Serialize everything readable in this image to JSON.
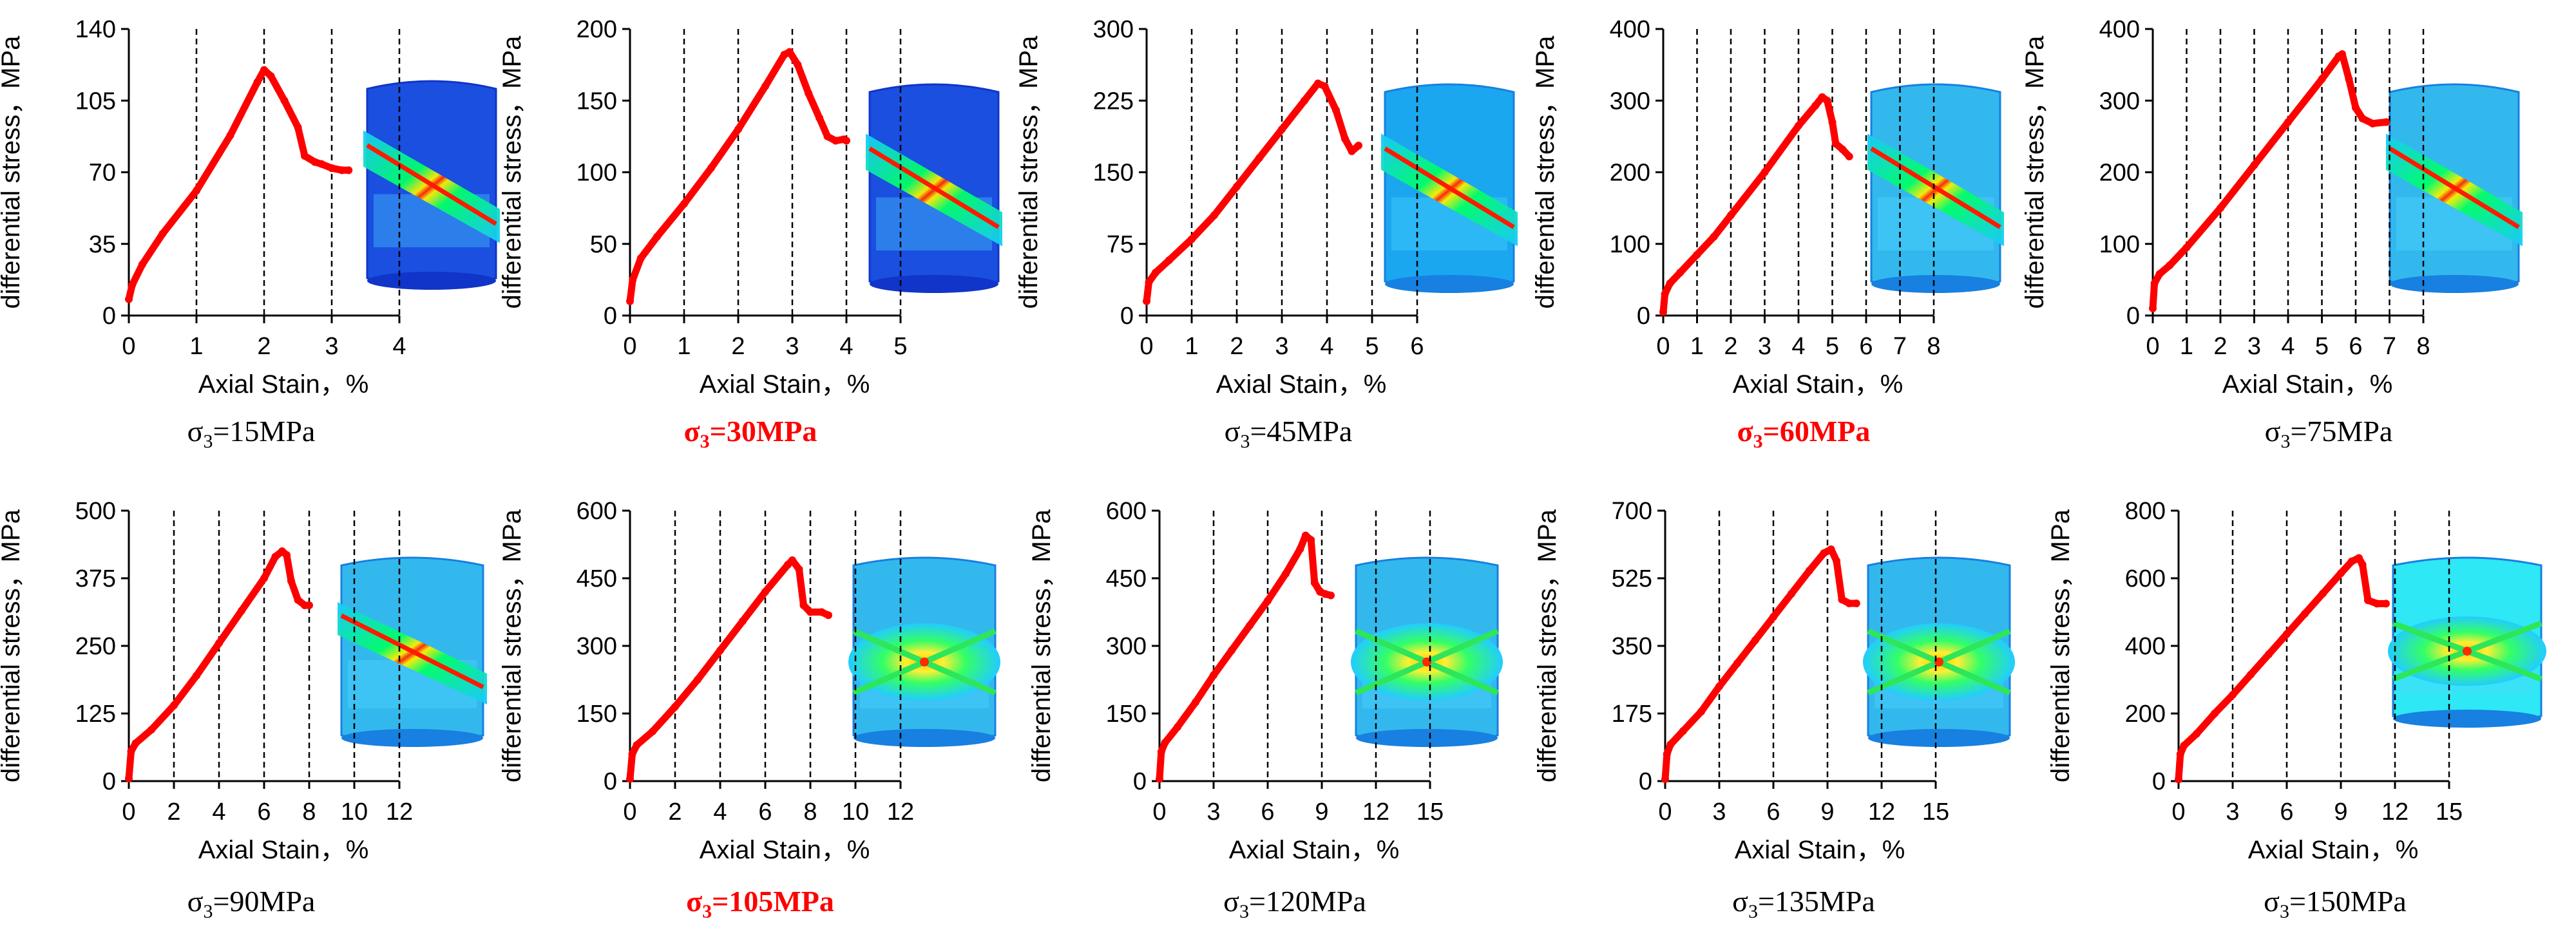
{
  "colors": {
    "curve": "#ff0000",
    "highlight_caption": "#ff0000",
    "caption": "#000000",
    "axis": "#000000",
    "grid": "#000000"
  },
  "chart_data": [
    {
      "type": "line",
      "title": "",
      "xlabel": "Axial Stain，%",
      "ylabel": "differential stress，MPa",
      "caption": {
        "prefix": "σ",
        "sub": "3",
        "value": "=15MPa",
        "highlight": false
      },
      "xlim": [
        0,
        4
      ],
      "ylim": [
        0,
        140
      ],
      "xticks": [
        "0",
        "1",
        "2",
        "3",
        "4"
      ],
      "yticks": [
        "0",
        "35",
        "70",
        "105",
        "140"
      ],
      "grid": "vertical dashed",
      "series": [
        {
          "x": [
            0,
            0.05,
            0.2,
            0.5,
            1.0,
            1.5,
            1.9,
            2.0,
            2.1,
            2.3,
            2.5,
            2.6,
            2.75,
            2.85,
            3.0,
            3.15,
            3.25
          ],
          "y": [
            8,
            15,
            25,
            40,
            61,
            88,
            114,
            120,
            117,
            105,
            92,
            78,
            75,
            74,
            72,
            71,
            71
          ]
        }
      ]
    },
    {
      "type": "line",
      "title": "",
      "xlabel": "Axial Stain，%",
      "ylabel": "differential stress，MPa",
      "caption": {
        "prefix": "σ",
        "sub": "3",
        "value": "=30MPa",
        "highlight": true
      },
      "xlim": [
        0,
        5
      ],
      "ylim": [
        0,
        200
      ],
      "xticks": [
        "0",
        "1",
        "2",
        "3",
        "4",
        "5"
      ],
      "yticks": [
        "0",
        "50",
        "100",
        "150",
        "200"
      ],
      "grid": "vertical dashed",
      "series": [
        {
          "x": [
            0,
            0.05,
            0.2,
            0.5,
            1.0,
            1.5,
            2.0,
            2.5,
            2.85,
            2.95,
            3.1,
            3.3,
            3.5,
            3.65,
            3.8,
            3.95,
            4.0
          ],
          "y": [
            10,
            25,
            40,
            55,
            78,
            103,
            130,
            160,
            182,
            184,
            175,
            155,
            138,
            125,
            122,
            123,
            122
          ]
        }
      ]
    },
    {
      "type": "line",
      "title": "",
      "xlabel": "Axial Stain，%",
      "ylabel": "differential stress，MPa",
      "caption": {
        "prefix": "σ",
        "sub": "3",
        "value": "=45MPa",
        "highlight": false
      },
      "xlim": [
        0,
        6
      ],
      "ylim": [
        0,
        300
      ],
      "xticks": [
        "0",
        "1",
        "2",
        "3",
        "4",
        "5",
        "6"
      ],
      "yticks": [
        "0",
        "75",
        "150",
        "225",
        "300"
      ],
      "grid": "vertical dashed",
      "series": [
        {
          "x": [
            0,
            0.05,
            0.2,
            0.5,
            1.0,
            1.5,
            2.0,
            2.5,
            3.0,
            3.5,
            3.8,
            3.95,
            4.2,
            4.4,
            4.55,
            4.7
          ],
          "y": [
            15,
            35,
            45,
            58,
            80,
            105,
            135,
            165,
            195,
            225,
            243,
            240,
            215,
            185,
            172,
            178
          ]
        }
      ]
    },
    {
      "type": "line",
      "title": "",
      "xlabel": "Axial Stain，%",
      "ylabel": "differential stress，MPa",
      "caption": {
        "prefix": "σ",
        "sub": "3",
        "value": "=60MPa",
        "highlight": true
      },
      "xlim": [
        0,
        8
      ],
      "ylim": [
        0,
        400
      ],
      "xticks": [
        "0",
        "1",
        "2",
        "3",
        "4",
        "5",
        "6",
        "7",
        "8"
      ],
      "yticks": [
        "0",
        "100",
        "200",
        "300",
        "400"
      ],
      "grid": "vertical dashed",
      "series": [
        {
          "x": [
            0,
            0.05,
            0.2,
            0.5,
            1.0,
            1.5,
            2.0,
            3.0,
            4.0,
            4.5,
            4.7,
            4.85,
            5.0,
            5.1,
            5.3,
            5.5
          ],
          "y": [
            5,
            30,
            45,
            60,
            85,
            110,
            140,
            200,
            265,
            293,
            305,
            300,
            270,
            240,
            232,
            222
          ]
        }
      ]
    },
    {
      "type": "line",
      "title": "",
      "xlabel": "Axial Stain，%",
      "ylabel": "differential stress，MPa",
      "caption": {
        "prefix": "σ",
        "sub": "3",
        "value": "=75MPa",
        "highlight": false
      },
      "xlim": [
        0,
        8
      ],
      "ylim": [
        0,
        400
      ],
      "xticks": [
        "0",
        "1",
        "2",
        "3",
        "4",
        "5",
        "6",
        "7",
        "8"
      ],
      "yticks": [
        "0",
        "100",
        "200",
        "300",
        "400"
      ],
      "grid": "vertical dashed",
      "series": [
        {
          "x": [
            0,
            0.05,
            0.2,
            0.5,
            1.0,
            2.0,
            3.0,
            4.0,
            5.0,
            5.5,
            5.6,
            5.8,
            6.0,
            6.2,
            6.5,
            6.9
          ],
          "y": [
            10,
            45,
            58,
            70,
            95,
            150,
            210,
            270,
            330,
            362,
            365,
            330,
            290,
            275,
            268,
            270
          ]
        }
      ]
    },
    {
      "type": "line",
      "title": "",
      "xlabel": "Axial Stain，%",
      "ylabel": "differential stress，MPa",
      "caption": {
        "prefix": "σ",
        "sub": "3",
        "value": "=90MPa",
        "highlight": false
      },
      "xlim": [
        0,
        12
      ],
      "ylim": [
        0,
        500
      ],
      "xticks": [
        "0",
        "2",
        "4",
        "6",
        "8",
        "10",
        "12"
      ],
      "yticks": [
        "0",
        "125",
        "250",
        "375",
        "500"
      ],
      "grid": "vertical dashed",
      "series": [
        {
          "x": [
            0,
            0.1,
            0.3,
            1.0,
            2.0,
            3.0,
            4.0,
            5.0,
            6.0,
            6.5,
            6.8,
            7.0,
            7.2,
            7.5,
            7.8,
            8.0
          ],
          "y": [
            5,
            55,
            70,
            95,
            140,
            195,
            255,
            315,
            375,
            415,
            425,
            418,
            370,
            335,
            325,
            325
          ]
        }
      ]
    },
    {
      "type": "line",
      "title": "",
      "xlabel": "Axial Stain，%",
      "ylabel": "differential stress，MPa",
      "caption": {
        "prefix": "σ",
        "sub": "3",
        "value": "=105MPa",
        "highlight": true
      },
      "xlim": [
        0,
        12
      ],
      "ylim": [
        0,
        600
      ],
      "xticks": [
        "0",
        "2",
        "4",
        "6",
        "8",
        "10",
        "12"
      ],
      "yticks": [
        "0",
        "150",
        "300",
        "450",
        "600"
      ],
      "grid": "vertical dashed",
      "series": [
        {
          "x": [
            0,
            0.1,
            0.3,
            1.0,
            2.0,
            3.0,
            4.0,
            5.0,
            6.0,
            7.0,
            7.2,
            7.5,
            7.7,
            8.0,
            8.5,
            8.8
          ],
          "y": [
            5,
            60,
            80,
            110,
            165,
            225,
            290,
            355,
            420,
            480,
            490,
            470,
            390,
            375,
            375,
            368
          ]
        }
      ]
    },
    {
      "type": "line",
      "title": "",
      "xlabel": "Axial Stain，%",
      "ylabel": "differential stress，MPa",
      "caption": {
        "prefix": "σ",
        "sub": "3",
        "value": "=120MPa",
        "highlight": false
      },
      "xlim": [
        0,
        15
      ],
      "ylim": [
        0,
        600
      ],
      "xticks": [
        "0",
        "3",
        "6",
        "9",
        "12",
        "15"
      ],
      "yticks": [
        "0",
        "150",
        "300",
        "450",
        "600"
      ],
      "grid": "vertical dashed",
      "series": [
        {
          "x": [
            0,
            0.1,
            0.3,
            1.0,
            2.0,
            3.0,
            4.0,
            5.0,
            6.0,
            7.0,
            7.8,
            8.1,
            8.4,
            8.6,
            8.9,
            9.2,
            9.5
          ],
          "y": [
            5,
            65,
            85,
            120,
            175,
            235,
            290,
            345,
            400,
            460,
            515,
            545,
            535,
            440,
            420,
            415,
            412
          ]
        }
      ]
    },
    {
      "type": "line",
      "title": "",
      "xlabel": "Axial Stain，%",
      "ylabel": "differential stress，MPa",
      "caption": {
        "prefix": "σ",
        "sub": "3",
        "value": "=135MPa",
        "highlight": false
      },
      "xlim": [
        0,
        15
      ],
      "ylim": [
        0,
        700
      ],
      "xticks": [
        "0",
        "3",
        "6",
        "9",
        "12",
        "15"
      ],
      "yticks": [
        "0",
        "175",
        "350",
        "525",
        "700"
      ],
      "grid": "vertical dashed",
      "series": [
        {
          "x": [
            0,
            0.1,
            0.3,
            1.0,
            2.0,
            3.0,
            4.0,
            5.0,
            6.0,
            7.0,
            8.0,
            8.8,
            9.2,
            9.5,
            9.8,
            10.2,
            10.6
          ],
          "y": [
            5,
            70,
            95,
            130,
            180,
            245,
            305,
            365,
            425,
            485,
            545,
            590,
            600,
            570,
            470,
            460,
            460
          ]
        }
      ]
    },
    {
      "type": "line",
      "title": "",
      "xlabel": "Axial Stain，%",
      "ylabel": "differential stress，MPa",
      "caption": {
        "prefix": "σ",
        "sub": "3",
        "value": "=150MPa",
        "highlight": false
      },
      "xlim": [
        0,
        15
      ],
      "ylim": [
        0,
        800
      ],
      "xticks": [
        "0",
        "3",
        "6",
        "9",
        "12",
        "15"
      ],
      "yticks": [
        "0",
        "200",
        "400",
        "600",
        "800"
      ],
      "grid": "vertical dashed",
      "series": [
        {
          "x": [
            0,
            0.1,
            0.3,
            1.0,
            2.0,
            3.0,
            4.0,
            5.0,
            6.0,
            7.0,
            8.0,
            9.0,
            9.6,
            10.0,
            10.2,
            10.5,
            11.0,
            11.5
          ],
          "y": [
            5,
            80,
            105,
            140,
            200,
            255,
            315,
            375,
            435,
            495,
            555,
            615,
            650,
            660,
            640,
            535,
            525,
            525
          ]
        }
      ]
    }
  ],
  "specimens": [
    {
      "style": "dark-diagonal"
    },
    {
      "style": "dark-diagonal"
    },
    {
      "style": "mid-diagonal"
    },
    {
      "style": "light-diagonal"
    },
    {
      "style": "light-diagonal"
    },
    {
      "style": "light-diagonal"
    },
    {
      "style": "light-x"
    },
    {
      "style": "light-x"
    },
    {
      "style": "light-x"
    },
    {
      "style": "cyan-x"
    }
  ]
}
